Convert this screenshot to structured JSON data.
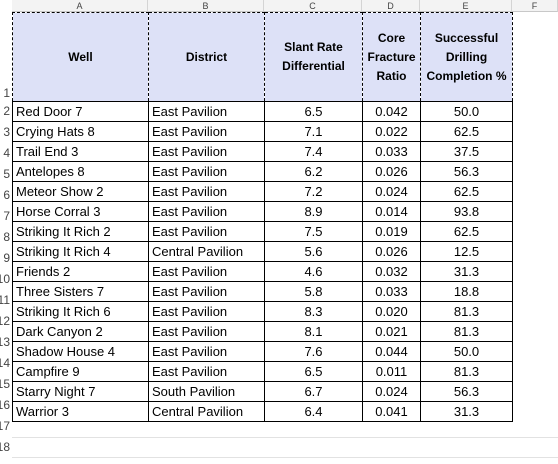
{
  "column_letters": [
    "A",
    "B",
    "C",
    "D",
    "E",
    "F"
  ],
  "row_numbers": [
    "1",
    "2",
    "3",
    "4",
    "5",
    "6",
    "7",
    "8",
    "9",
    "10",
    "11",
    "12",
    "13",
    "14",
    "15",
    "16",
    "17",
    "18"
  ],
  "headers": {
    "well": "Well",
    "district": "District",
    "slant": "Slant Rate Differential",
    "fracture": "Core Fracture Ratio",
    "completion": "Successful Drilling Completion %"
  },
  "rows": [
    {
      "well": "Red Door 7",
      "district": "East Pavilion",
      "slant": "6.5",
      "fracture": "0.042",
      "completion": "50.0"
    },
    {
      "well": "Crying Hats 8",
      "district": "East Pavilion",
      "slant": "7.1",
      "fracture": "0.022",
      "completion": "62.5"
    },
    {
      "well": "Trail End 3",
      "district": "East Pavilion",
      "slant": "7.4",
      "fracture": "0.033",
      "completion": "37.5"
    },
    {
      "well": "Antelopes  8",
      "district": "East Pavilion",
      "slant": "6.2",
      "fracture": "0.026",
      "completion": "56.3"
    },
    {
      "well": "Meteor Show 2",
      "district": "East Pavilion",
      "slant": "7.2",
      "fracture": "0.024",
      "completion": "62.5"
    },
    {
      "well": "Horse Corral 3",
      "district": "East Pavilion",
      "slant": "8.9",
      "fracture": "0.014",
      "completion": "93.8"
    },
    {
      "well": "Striking It Rich 2",
      "district": "East Pavilion",
      "slant": "7.5",
      "fracture": "0.019",
      "completion": "62.5"
    },
    {
      "well": "Striking It Rich 4",
      "district": "Central Pavilion",
      "slant": "5.6",
      "fracture": "0.026",
      "completion": "12.5"
    },
    {
      "well": "Friends 2",
      "district": "East Pavilion",
      "slant": "4.6",
      "fracture": "0.032",
      "completion": "31.3"
    },
    {
      "well": "Three Sisters 7",
      "district": "East Pavilion",
      "slant": "5.8",
      "fracture": "0.033",
      "completion": "18.8"
    },
    {
      "well": "Striking It Rich 6",
      "district": "East Pavilion",
      "slant": "8.3",
      "fracture": "0.020",
      "completion": "81.3"
    },
    {
      "well": "Dark Canyon 2",
      "district": "East Pavilion",
      "slant": "8.1",
      "fracture": "0.021",
      "completion": "81.3"
    },
    {
      "well": "Shadow House 4",
      "district": "East Pavilion",
      "slant": "7.6",
      "fracture": "0.044",
      "completion": "50.0"
    },
    {
      "well": "Campfire 9",
      "district": "East Pavilion",
      "slant": "6.5",
      "fracture": "0.011",
      "completion": "81.3"
    },
    {
      "well": "Starry Night 7",
      "district": "South Pavilion",
      "slant": "6.7",
      "fracture": "0.024",
      "completion": "56.3"
    },
    {
      "well": "Warrior 3",
      "district": "Central Pavilion",
      "slant": "6.4",
      "fracture": "0.041",
      "completion": "31.3"
    }
  ]
}
